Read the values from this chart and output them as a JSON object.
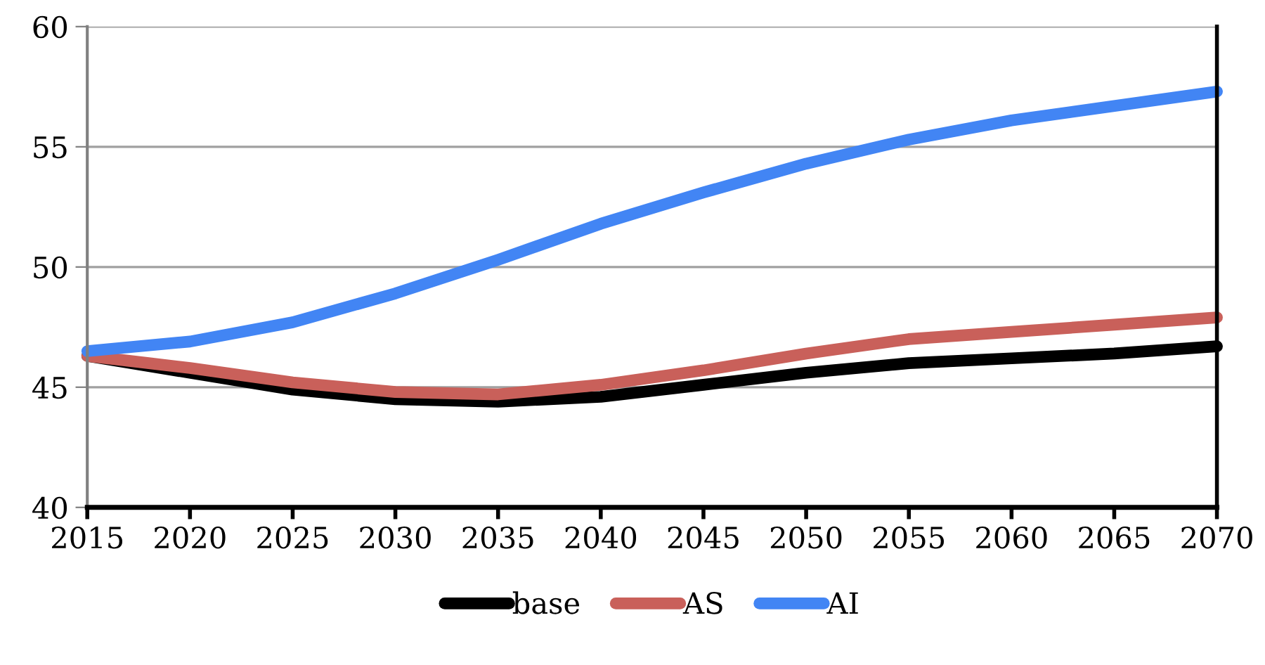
{
  "chart_data": {
    "type": "line",
    "x": [
      2015,
      2020,
      2025,
      2030,
      2035,
      2040,
      2045,
      2050,
      2055,
      2060,
      2065,
      2070
    ],
    "series": [
      {
        "name": "base",
        "color": "#000000",
        "values": [
          46.3,
          45.6,
          44.9,
          44.5,
          44.4,
          44.6,
          45.1,
          45.6,
          46.0,
          46.2,
          46.4,
          46.7
        ]
      },
      {
        "name": "AS",
        "color": "#c9605a",
        "values": [
          46.3,
          45.8,
          45.2,
          44.8,
          44.7,
          45.1,
          45.7,
          46.4,
          47.0,
          47.3,
          47.6,
          47.9
        ]
      },
      {
        "name": "AI",
        "color": "#4285f4",
        "values": [
          46.5,
          46.9,
          47.7,
          48.9,
          50.3,
          51.8,
          53.1,
          54.3,
          55.3,
          56.1,
          56.7,
          57.3
        ]
      }
    ],
    "xlim": [
      2015,
      2070
    ],
    "xticks": [
      2015,
      2020,
      2025,
      2030,
      2035,
      2040,
      2045,
      2050,
      2055,
      2060,
      2065,
      2070
    ],
    "ylim": [
      40,
      60
    ],
    "yticks": [
      40,
      45,
      50,
      55,
      60
    ],
    "grid": "y",
    "legend": "bottom",
    "marker": "none",
    "line_style": "solid"
  }
}
